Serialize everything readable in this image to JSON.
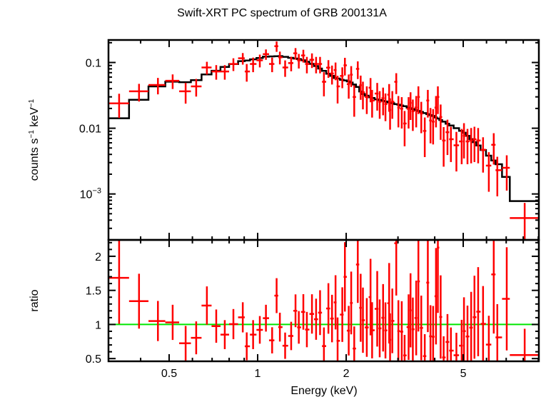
{
  "chart_data": {
    "type": "scatter",
    "title": "Swift-XRT PC spectrum of GRB 200131A",
    "xlabel": "Energy (keV)",
    "xscale": "log",
    "xlim": [
      0.311,
      9.04
    ],
    "x_ticks": [
      {
        "v": 0.5,
        "label": "0.5"
      },
      {
        "v": 1,
        "label": "1"
      },
      {
        "v": 2,
        "label": "2"
      },
      {
        "v": 5,
        "label": "5"
      }
    ],
    "colors": {
      "data": "#ff0000",
      "model": "#000000",
      "unity": "#00e600"
    },
    "panels": [
      {
        "name": "spectrum",
        "ylabel_main": "counts s",
        "ylabel_sup1": "−1",
        "ylabel_mid": " keV",
        "ylabel_sup2": "−1",
        "yscale": "log",
        "ylim": [
          0.0002,
          0.22
        ],
        "y_ticks": [
          {
            "v": 0.1,
            "label": "0.1"
          },
          {
            "v": 0.01,
            "label": "0.01"
          },
          {
            "v": 0.001,
            "label": "10",
            "sup": "−3"
          }
        ]
      },
      {
        "name": "ratio",
        "ylabel": "ratio",
        "yscale": "linear",
        "ylim": [
          0.46,
          2.24
        ],
        "y_ticks": [
          {
            "v": 0.5,
            "label": "0.5"
          },
          {
            "v": 1,
            "label": "1"
          },
          {
            "v": 1.5,
            "label": "1.5"
          },
          {
            "v": 2,
            "label": "2"
          }
        ],
        "reference_line": 1
      }
    ],
    "model_knots": [
      [
        0.311,
        0.0142
      ],
      [
        0.338,
        0.0142
      ],
      [
        0.397,
        0.0277
      ],
      [
        0.458,
        0.0433
      ],
      [
        0.516,
        0.0514
      ],
      [
        0.57,
        0.0502
      ],
      [
        0.62,
        0.054
      ],
      [
        0.673,
        0.066
      ],
      [
        0.724,
        0.075
      ],
      [
        0.774,
        0.086
      ],
      [
        0.83,
        0.095
      ],
      [
        0.89,
        0.105
      ],
      [
        0.95,
        0.11
      ],
      [
        1.07,
        0.123
      ],
      [
        1.2,
        0.125
      ],
      [
        1.41,
        0.111
      ],
      [
        1.55,
        0.093
      ],
      [
        1.84,
        0.058
      ],
      [
        2.06,
        0.051
      ],
      [
        2.2,
        0.042
      ],
      [
        2.26,
        0.0337
      ],
      [
        2.47,
        0.0284
      ],
      [
        3.16,
        0.0216
      ],
      [
        3.96,
        0.0153
      ],
      [
        4.42,
        0.0117
      ],
      [
        4.95,
        0.0091
      ],
      [
        5.72,
        0.0051
      ],
      [
        6.28,
        0.0034
      ],
      [
        6.6,
        0.0027
      ],
      [
        7.0,
        0.002
      ],
      [
        7.3,
        0.00078
      ],
      [
        9.04,
        0.00078
      ]
    ],
    "data_points_columns": [
      "energy_keV",
      "counts",
      "rel_err"
    ],
    "data_points": [
      [
        0.338,
        0.0239,
        0.4
      ],
      [
        0.395,
        0.0364,
        0.3
      ],
      [
        0.458,
        0.0455,
        0.28
      ],
      [
        0.514,
        0.0527,
        0.25
      ],
      [
        0.569,
        0.0364,
        0.35
      ],
      [
        0.618,
        0.0433,
        0.3
      ],
      [
        0.672,
        0.084,
        0.22
      ],
      [
        0.723,
        0.073,
        0.25
      ],
      [
        0.773,
        0.073,
        0.25
      ],
      [
        0.827,
        0.095,
        0.22
      ],
      [
        0.89,
        0.116,
        0.2
      ],
      [
        0.918,
        0.073,
        0.3
      ],
      [
        0.965,
        0.095,
        0.25
      ],
      [
        1.017,
        0.108,
        0.22
      ],
      [
        1.067,
        0.134,
        0.18
      ],
      [
        1.12,
        0.095,
        0.25
      ],
      [
        1.16,
        0.177,
        0.18
      ],
      [
        1.19,
        0.12,
        0.22
      ],
      [
        1.24,
        0.084,
        0.28
      ],
      [
        1.3,
        0.098,
        0.25
      ],
      [
        1.345,
        0.138,
        0.2
      ],
      [
        1.38,
        0.108,
        0.25
      ],
      [
        1.43,
        0.128,
        0.22
      ],
      [
        1.47,
        0.095,
        0.28
      ],
      [
        1.53,
        0.11,
        0.25
      ],
      [
        1.58,
        0.095,
        0.28
      ],
      [
        1.63,
        0.095,
        0.28
      ],
      [
        1.68,
        0.0509,
        0.4
      ],
      [
        1.74,
        0.0835,
        0.3
      ],
      [
        1.79,
        0.068,
        0.32
      ],
      [
        1.84,
        0.0768,
        0.3
      ],
      [
        1.87,
        0.0433,
        0.45
      ],
      [
        1.94,
        0.0625,
        0.35
      ],
      [
        1.98,
        0.0906,
        0.3
      ],
      [
        2.04,
        0.0469,
        0.4
      ],
      [
        2.08,
        0.0652,
        0.35
      ],
      [
        2.13,
        0.0299,
        0.5
      ],
      [
        2.19,
        0.08,
        0.3
      ],
      [
        2.24,
        0.0451,
        0.4
      ],
      [
        2.28,
        0.0352,
        0.45
      ],
      [
        2.35,
        0.0299,
        0.45
      ],
      [
        2.42,
        0.0414,
        0.4
      ],
      [
        2.45,
        0.0264,
        0.45
      ],
      [
        2.55,
        0.0337,
        0.45
      ],
      [
        2.6,
        0.0253,
        0.45
      ],
      [
        2.67,
        0.0286,
        0.45
      ],
      [
        2.72,
        0.0233,
        0.45
      ],
      [
        2.8,
        0.0324,
        0.45
      ],
      [
        2.82,
        0.019,
        0.5
      ],
      [
        2.87,
        0.0253,
        0.45
      ],
      [
        2.96,
        0.0509,
        0.35
      ],
      [
        3.01,
        0.0206,
        0.5
      ],
      [
        3.09,
        0.0198,
        0.5
      ],
      [
        3.16,
        0.0118,
        0.55
      ],
      [
        3.26,
        0.0198,
        0.5
      ],
      [
        3.31,
        0.0243,
        0.45
      ],
      [
        3.37,
        0.0182,
        0.5
      ],
      [
        3.46,
        0.0206,
        0.5
      ],
      [
        3.52,
        0.0299,
        0.45
      ],
      [
        3.6,
        0.0168,
        0.5
      ],
      [
        3.7,
        0.0091,
        0.6
      ],
      [
        3.79,
        0.0264,
        0.45
      ],
      [
        3.87,
        0.0131,
        0.55
      ],
      [
        3.95,
        0.0126,
        0.55
      ],
      [
        4.04,
        0.0206,
        0.5
      ],
      [
        4.1,
        0.0299,
        0.45
      ],
      [
        4.19,
        0.0148,
        0.55
      ],
      [
        4.29,
        0.0065,
        0.6
      ],
      [
        4.42,
        0.0087,
        0.55
      ],
      [
        4.54,
        0.0068,
        0.55
      ],
      [
        4.74,
        0.0055,
        0.6
      ],
      [
        4.94,
        0.0063,
        0.55
      ],
      [
        5.03,
        0.0077,
        0.55
      ],
      [
        5.17,
        0.0063,
        0.55
      ],
      [
        5.32,
        0.0065,
        0.55
      ],
      [
        5.46,
        0.0068,
        0.55
      ],
      [
        5.62,
        0.0065,
        0.55
      ],
      [
        5.84,
        0.0047,
        0.55
      ],
      [
        6.11,
        0.0027,
        0.6
      ],
      [
        6.35,
        0.0056,
        0.5
      ],
      [
        6.53,
        0.0023,
        0.6
      ],
      [
        7.03,
        0.0025,
        0.55
      ],
      [
        8.09,
        0.00043,
        0.7
      ]
    ]
  }
}
